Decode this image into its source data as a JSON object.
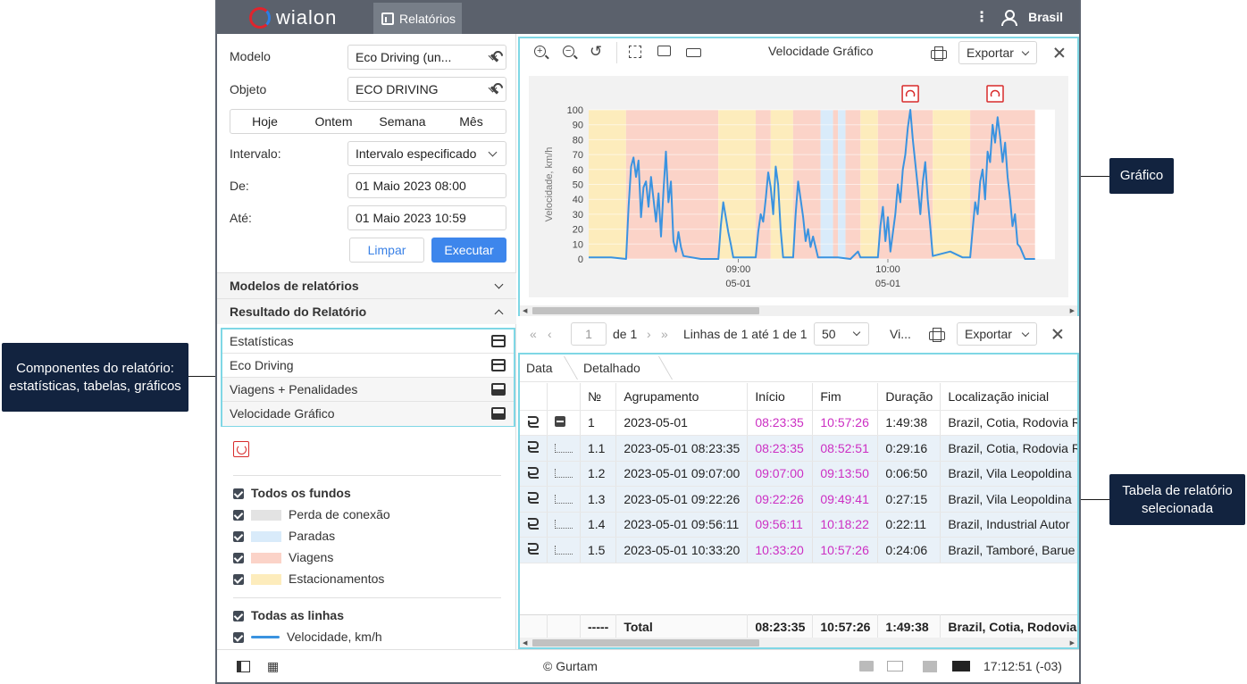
{
  "topbar": {
    "logo_text": "wialon",
    "tab_reports": "Relatórios",
    "user_name": "Brasil"
  },
  "form": {
    "model_label": "Modelo",
    "model_value": "Eco Driving (un...",
    "object_label": "Objeto",
    "object_value": "ECO DRIVING",
    "quick": [
      "Hoje",
      "Ontem",
      "Semana",
      "Mês"
    ],
    "interval_label": "Intervalo:",
    "interval_value": "Intervalo especificado",
    "from_label": "De:",
    "from_value": "01 Maio 2023 08:00",
    "to_label": "Até:",
    "to_value": "01 Maio 2023 10:59",
    "clear_label": "Limpar",
    "execute_label": "Executar"
  },
  "sections": {
    "templates": "Modelos de relatórios",
    "result": "Resultado do Relatório"
  },
  "components": [
    "Estatísticas",
    "Eco Driving",
    "Viagens + Penalidades",
    "Velocidade Gráfico"
  ],
  "backgrounds": {
    "all_label": "Todos os fundos",
    "items": [
      {
        "label": "Perda de conexão",
        "color": "#e3e3e3"
      },
      {
        "label": "Paradas",
        "color": "#d9ebfa"
      },
      {
        "label": "Viagens",
        "color": "#fbd3c8"
      },
      {
        "label": "Estacionamentos",
        "color": "#fdecbc"
      }
    ]
  },
  "lines": {
    "all_label": "Todas as linhas",
    "speed_label": "Velocidade, km/h",
    "speed_color": "#3a93e0"
  },
  "chart_toolbar": {
    "title": "Velocidade Gráfico",
    "export_label": "Exportar"
  },
  "chart_data": {
    "type": "line",
    "title": "Velocidade Gráfico",
    "ylabel": "Velocidade, km/h",
    "ylim": [
      0,
      100
    ],
    "yticks": [
      0,
      10,
      20,
      30,
      40,
      50,
      60,
      70,
      80,
      90,
      100
    ],
    "x_ticks": [
      {
        "time": "09:00",
        "date": "05-01"
      },
      {
        "time": "10:00",
        "date": "05-01"
      }
    ],
    "series": [
      {
        "name": "Velocidade, km/h",
        "points": [
          [
            "08:00",
            1
          ],
          [
            "08:06",
            1
          ],
          [
            "08:09",
            1
          ],
          [
            "08:15",
            0
          ],
          [
            "08:16",
            35
          ],
          [
            "08:17",
            62
          ],
          [
            "08:18",
            68
          ],
          [
            "08:19",
            55
          ],
          [
            "08:20",
            66
          ],
          [
            "08:21",
            28
          ],
          [
            "08:22",
            48
          ],
          [
            "08:23",
            52
          ],
          [
            "08:24",
            35
          ],
          [
            "08:25",
            55
          ],
          [
            "08:26",
            40
          ],
          [
            "08:27",
            25
          ],
          [
            "08:28",
            44
          ],
          [
            "08:29",
            15
          ],
          [
            "08:30",
            45
          ],
          [
            "08:31",
            72
          ],
          [
            "08:32",
            38
          ],
          [
            "08:33",
            52
          ],
          [
            "08:34",
            12
          ],
          [
            "08:35",
            5
          ],
          [
            "08:36",
            18
          ],
          [
            "08:37",
            8
          ],
          [
            "08:38",
            2
          ],
          [
            "08:45",
            0
          ],
          [
            "08:52",
            0
          ],
          [
            "08:53",
            22
          ],
          [
            "08:54",
            38
          ],
          [
            "08:55",
            28
          ],
          [
            "08:56",
            18
          ],
          [
            "08:57",
            10
          ],
          [
            "08:58",
            1
          ],
          [
            "09:07",
            1
          ],
          [
            "09:08",
            18
          ],
          [
            "09:09",
            30
          ],
          [
            "09:10",
            25
          ],
          [
            "09:11",
            40
          ],
          [
            "09:12",
            58
          ],
          [
            "09:13",
            48
          ],
          [
            "09:14",
            30
          ],
          [
            "09:15",
            62
          ],
          [
            "09:16",
            50
          ],
          [
            "09:17",
            20
          ],
          [
            "09:18",
            1
          ],
          [
            "09:22",
            1
          ],
          [
            "09:23",
            30
          ],
          [
            "09:24",
            52
          ],
          [
            "09:25",
            40
          ],
          [
            "09:26",
            28
          ],
          [
            "09:27",
            12
          ],
          [
            "09:28",
            20
          ],
          [
            "09:29",
            8
          ],
          [
            "09:30",
            15
          ],
          [
            "09:32",
            1
          ],
          [
            "09:40",
            1
          ],
          [
            "09:45",
            0
          ],
          [
            "09:48",
            5
          ],
          [
            "09:49",
            1
          ],
          [
            "09:56",
            1
          ],
          [
            "09:57",
            22
          ],
          [
            "09:58",
            35
          ],
          [
            "09:59",
            12
          ],
          [
            "10:00",
            28
          ],
          [
            "10:01",
            5
          ],
          [
            "10:03",
            30
          ],
          [
            "10:04",
            50
          ],
          [
            "10:05",
            38
          ],
          [
            "10:06",
            60
          ],
          [
            "10:07",
            70
          ],
          [
            "10:08",
            88
          ],
          [
            "10:09",
            100
          ],
          [
            "10:10",
            80
          ],
          [
            "10:11",
            64
          ],
          [
            "10:12",
            48
          ],
          [
            "10:13",
            30
          ],
          [
            "10:14",
            52
          ],
          [
            "10:15",
            65
          ],
          [
            "10:16",
            40
          ],
          [
            "10:17",
            22
          ],
          [
            "10:18",
            2
          ],
          [
            "10:25",
            5
          ],
          [
            "10:30",
            1
          ],
          [
            "10:33",
            1
          ],
          [
            "10:34",
            20
          ],
          [
            "10:35",
            38
          ],
          [
            "10:36",
            30
          ],
          [
            "10:37",
            52
          ],
          [
            "10:38",
            60
          ],
          [
            "10:39",
            40
          ],
          [
            "10:40",
            72
          ],
          [
            "10:41",
            65
          ],
          [
            "10:42",
            90
          ],
          [
            "10:43",
            78
          ],
          [
            "10:44",
            95
          ],
          [
            "10:45",
            82
          ],
          [
            "10:46",
            65
          ],
          [
            "10:47",
            78
          ],
          [
            "10:48",
            55
          ],
          [
            "10:49",
            40
          ],
          [
            "10:50",
            22
          ],
          [
            "10:51",
            30
          ],
          [
            "10:52",
            10
          ],
          [
            "10:53",
            8
          ],
          [
            "10:55",
            0
          ],
          [
            "10:58",
            0
          ],
          [
            "10:59",
            0
          ]
        ]
      }
    ],
    "backgrounds": [
      [
        "08:00",
        "08:15",
        "parking"
      ],
      [
        "08:15",
        "08:52",
        "trip"
      ],
      [
        "08:52",
        "09:07",
        "parking"
      ],
      [
        "09:07",
        "09:13",
        "trip"
      ],
      [
        "09:13",
        "09:22",
        "parking"
      ],
      [
        "09:22",
        "09:33",
        "trip"
      ],
      [
        "09:33",
        "09:38",
        "stop"
      ],
      [
        "09:38",
        "09:40",
        "trip"
      ],
      [
        "09:40",
        "09:43",
        "stop"
      ],
      [
        "09:43",
        "09:49",
        "trip"
      ],
      [
        "09:49",
        "09:56",
        "parking"
      ],
      [
        "09:56",
        "10:18",
        "trip"
      ],
      [
        "10:18",
        "10:33",
        "parking"
      ],
      [
        "10:33",
        "10:59",
        "trip"
      ]
    ],
    "markers": [
      {
        "time": "10:09",
        "type": "speed-violation"
      },
      {
        "time": "10:43",
        "type": "speed-violation"
      }
    ]
  },
  "pager": {
    "page": "1",
    "of_label": "de 1",
    "rows_label": "Linhas de 1 até 1 de 1",
    "per_page": "50",
    "view_label": "Vi...",
    "export_label": "Exportar"
  },
  "breadcrumbs": [
    "Data",
    "Detalhado"
  ],
  "table": {
    "headers": [
      "№",
      "Agrupamento",
      "Início",
      "Fim",
      "Duração",
      "Localização inicial"
    ],
    "rows": [
      {
        "num": "1",
        "group": "2023-05-01",
        "start": "08:23:35",
        "end": "10:57:26",
        "duration": "1:49:38",
        "location": "Brazil, Cotia, Rodovia R"
      },
      {
        "num": "1.1",
        "group": "2023-05-01 08:23:35",
        "start": "08:23:35",
        "end": "08:52:51",
        "duration": "0:29:16",
        "location": "Brazil, Cotia, Rodovia R"
      },
      {
        "num": "1.2",
        "group": "2023-05-01 09:07:00",
        "start": "09:07:00",
        "end": "09:13:50",
        "duration": "0:06:50",
        "location": "Brazil, Vila Leopoldina"
      },
      {
        "num": "1.3",
        "group": "2023-05-01 09:22:26",
        "start": "09:22:26",
        "end": "09:49:41",
        "duration": "0:27:15",
        "location": "Brazil, Vila Leopoldina"
      },
      {
        "num": "1.4",
        "group": "2023-05-01 09:56:11",
        "start": "09:56:11",
        "end": "10:18:22",
        "duration": "0:22:11",
        "location": "Brazil, Industrial Autor"
      },
      {
        "num": "1.5",
        "group": "2023-05-01 10:33:20",
        "start": "10:33:20",
        "end": "10:57:26",
        "duration": "0:24:06",
        "location": "Brazil, Tamboré, Barue"
      }
    ],
    "total": {
      "num": "-----",
      "group": "Total",
      "start": "08:23:35",
      "end": "10:57:26",
      "duration": "1:49:38",
      "location": "Brazil, Cotia, Rodovia R"
    }
  },
  "footer": {
    "copyright": "© Gurtam",
    "time": "17:12:51 (-03)"
  },
  "callouts": {
    "components": "Componentes do relatório: estatísticas, tabelas, gráficos",
    "chart": "Gráfico",
    "table": "Tabela de relatório selecionada"
  }
}
